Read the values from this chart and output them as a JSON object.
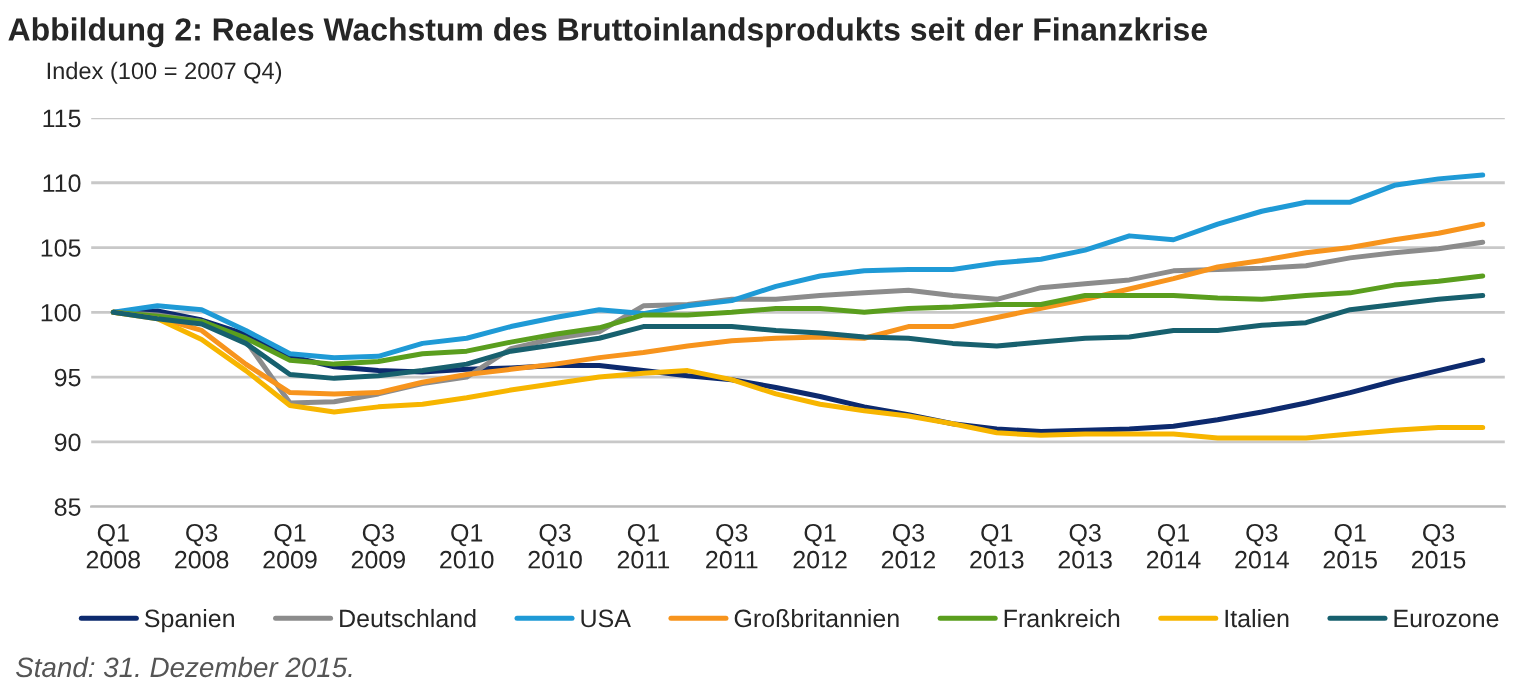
{
  "chart_data": {
    "type": "line",
    "title": "Abbildung 2: Reales Wachstum des Bruttoinlandsprodukts seit der Finanzkrise",
    "ylabel": "Index (100 = 2007 Q4)",
    "categories": [
      "Q1\n2008",
      null,
      "Q3\n2008",
      null,
      "Q1\n2009",
      null,
      "Q3\n2009",
      null,
      "Q1\n2010",
      null,
      "Q3\n2010",
      null,
      "Q1\n2011",
      null,
      "Q3\n2011",
      null,
      "Q1\n2012",
      null,
      "Q3\n2012",
      null,
      "Q1\n2013",
      null,
      "Q3\n2013",
      null,
      "Q1\n2014",
      null,
      "Q3\n2014",
      null,
      "Q1\n2015",
      null,
      "Q3\n2015",
      null
    ],
    "series": [
      {
        "name": "Spanien",
        "color": "#0d2a6e",
        "values": [
          100,
          100.1,
          99.4,
          98.3,
          96.6,
          95.8,
          95.5,
          95.4,
          95.6,
          95.7,
          95.9,
          95.9,
          95.5,
          95.1,
          94.8,
          94.2,
          93.5,
          92.7,
          92.1,
          91.4,
          91.0,
          90.8,
          90.9,
          91.0,
          91.2,
          91.7,
          92.3,
          93.0,
          93.8,
          94.7,
          95.5,
          96.3
        ]
      },
      {
        "name": "Deutschland",
        "color": "#8c8c8c",
        "values": [
          100,
          99.8,
          99.3,
          97.8,
          93.0,
          93.1,
          93.7,
          94.5,
          95.0,
          97.2,
          98.0,
          98.5,
          100.5,
          100.6,
          101.0,
          101.0,
          101.3,
          101.5,
          101.7,
          101.3,
          101.0,
          101.9,
          102.2,
          102.5,
          103.2,
          103.3,
          103.4,
          103.6,
          104.2,
          104.6,
          104.9,
          105.4
        ]
      },
      {
        "name": "USA",
        "color": "#1f9ad6",
        "values": [
          100,
          100.5,
          100.2,
          98.6,
          96.8,
          96.5,
          96.6,
          97.6,
          98.0,
          98.9,
          99.6,
          100.2,
          99.9,
          100.5,
          100.9,
          102.0,
          102.8,
          103.2,
          103.3,
          103.3,
          103.8,
          104.1,
          104.8,
          105.9,
          105.6,
          106.8,
          107.8,
          108.5,
          108.5,
          109.8,
          110.3,
          110.6
        ]
      },
      {
        "name": "Großbritannien",
        "color": "#f7941d",
        "values": [
          100,
          99.6,
          98.6,
          96.0,
          93.8,
          93.7,
          93.8,
          94.6,
          95.2,
          95.6,
          96.0,
          96.5,
          96.9,
          97.4,
          97.8,
          98.0,
          98.1,
          98.0,
          98.9,
          98.9,
          99.6,
          100.3,
          101.0,
          101.8,
          102.6,
          103.5,
          104.0,
          104.6,
          105.0,
          105.6,
          106.1,
          106.8
        ]
      },
      {
        "name": "Frankreich",
        "color": "#5a9e1e",
        "values": [
          100,
          99.7,
          99.3,
          98.0,
          96.3,
          96.0,
          96.2,
          96.8,
          97.0,
          97.7,
          98.3,
          98.8,
          99.8,
          99.8,
          100.0,
          100.3,
          100.3,
          100.0,
          100.3,
          100.4,
          100.6,
          100.6,
          101.3,
          101.3,
          101.3,
          101.1,
          101.0,
          101.3,
          101.5,
          102.1,
          102.4,
          102.8
        ]
      },
      {
        "name": "Italien",
        "color": "#f7b500",
        "values": [
          100,
          99.5,
          97.9,
          95.5,
          92.8,
          92.3,
          92.7,
          92.9,
          93.4,
          94.0,
          94.5,
          95.0,
          95.3,
          95.5,
          94.8,
          93.7,
          92.9,
          92.4,
          92.0,
          91.4,
          90.7,
          90.5,
          90.6,
          90.6,
          90.6,
          90.3,
          90.3,
          90.3,
          90.6,
          90.9,
          91.1,
          91.1
        ]
      },
      {
        "name": "Eurozone",
        "color": "#17606e",
        "values": [
          100,
          99.5,
          99.1,
          97.6,
          95.2,
          94.9,
          95.1,
          95.5,
          96.0,
          97.0,
          97.5,
          98.0,
          98.9,
          98.9,
          98.9,
          98.6,
          98.4,
          98.1,
          98.0,
          97.6,
          97.4,
          97.7,
          98.0,
          98.1,
          98.6,
          98.6,
          99.0,
          99.2,
          100.2,
          100.6,
          101.0,
          101.3
        ]
      }
    ],
    "ylim": [
      85,
      115
    ],
    "yticks": [
      85,
      90,
      95,
      100,
      105,
      110,
      115
    ],
    "grid": "y",
    "legend": "bottom",
    "marker": "none",
    "line_style": "solid",
    "annotations": [
      "Stand: 31. Dezember 2015."
    ]
  }
}
